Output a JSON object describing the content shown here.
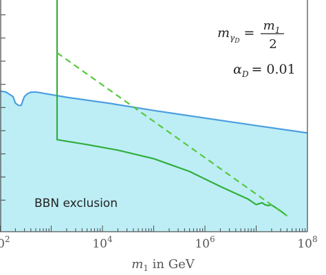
{
  "chart_data": {
    "type": "line",
    "xscale": "log",
    "xlim": [
      100,
      100000000
    ],
    "ylim": [
      0,
      1
    ],
    "x_ticks": [
      {
        "value": 100,
        "base": "10",
        "exp": "2"
      },
      {
        "value": 10000,
        "base": "10",
        "exp": "4"
      },
      {
        "value": 1000000,
        "base": "10",
        "exp": "6"
      },
      {
        "value": 100000000,
        "base": "10",
        "exp": "8"
      }
    ],
    "xlabel_var": "m",
    "xlabel_sub": "1",
    "xlabel_text": " in GeV",
    "y_tick_values": [
      0.136,
      0.236,
      0.336,
      0.436,
      0.536,
      0.636,
      0.736,
      0.836,
      0.936
    ],
    "annotations": {
      "line1_lhs": "m",
      "line1_lhs_sub": "γ",
      "line1_lhs_subsub": "D",
      "line1_eq": "=",
      "line1_num": "m",
      "line1_num_sub": "1",
      "line1_den": "2",
      "line2_lhs": "α",
      "line2_lhs_sub": "D",
      "line2_rhs": "= 0.01"
    },
    "region_label": "BBN exclusion",
    "colors": {
      "region_fill": "#bdeef6",
      "blue": "#4a9ee0",
      "green": "#2fae3c",
      "green_dashed": "#55c83d",
      "axis": "#555555"
    },
    "series": [
      {
        "style": "solid",
        "color": "blue",
        "x": [
          100,
          130,
          180,
          200,
          230,
          260,
          280,
          300,
          340,
          400,
          500,
          2000,
          13000,
          100000,
          10000000,
          100000000
        ],
        "y": [
          0.607,
          0.603,
          0.583,
          0.555,
          0.545,
          0.545,
          0.567,
          0.583,
          0.595,
          0.602,
          0.603,
          0.58,
          0.555,
          0.523,
          0.458,
          0.426
        ]
      },
      {
        "style": "solid",
        "color": "green",
        "x": [
          1300,
          1300,
          1300,
          1300,
          5000,
          20000,
          100000,
          500000,
          2000000,
          7000000,
          10000000,
          13000000,
          15000000,
          17000000,
          20000000,
          30000000,
          40000000
        ],
        "y": [
          1.0,
          0.772,
          0.425,
          0.397,
          0.376,
          0.352,
          0.315,
          0.26,
          0.195,
          0.14,
          0.117,
          0.125,
          0.116,
          0.113,
          0.115,
          0.09,
          0.068
        ]
      },
      {
        "style": "dashed",
        "color": "green_dashed",
        "x": [
          1300,
          40000000
        ],
        "y": [
          0.772,
          0.068
        ]
      }
    ]
  }
}
